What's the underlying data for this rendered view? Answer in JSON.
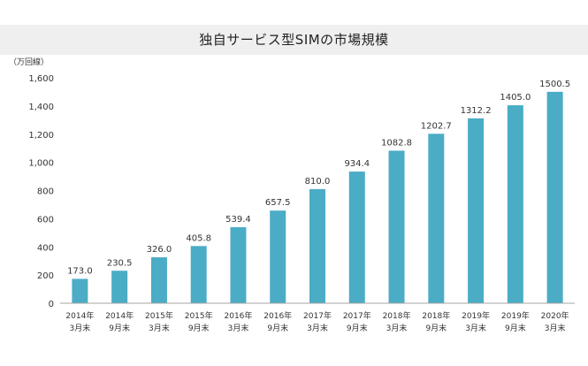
{
  "chart_data": {
    "type": "bar",
    "title": "独自サービス型SIMの市場規模",
    "ylabel": "（万回線）",
    "xlabel": "",
    "categories": [
      [
        "2014年",
        "3月末"
      ],
      [
        "2014年",
        "9月末"
      ],
      [
        "2015年",
        "3月末"
      ],
      [
        "2015年",
        "9月末"
      ],
      [
        "2016年",
        "3月末"
      ],
      [
        "2016年",
        "9月末"
      ],
      [
        "2017年",
        "3月末"
      ],
      [
        "2017年",
        "9月末"
      ],
      [
        "2018年",
        "3月末"
      ],
      [
        "2018年",
        "9月末"
      ],
      [
        "2019年",
        "3月末"
      ],
      [
        "2019年",
        "9月末"
      ],
      [
        "2020年",
        "3月末"
      ]
    ],
    "values": [
      173.0,
      230.5,
      326.0,
      405.8,
      539.4,
      657.5,
      810.0,
      934.4,
      1082.8,
      1202.7,
      1312.2,
      1405.0,
      1500.5
    ],
    "value_labels": [
      "173.0",
      "230.5",
      "326.0",
      "405.8",
      "539.4",
      "657.5",
      "810.0",
      "934.4",
      "1082.8",
      "1202.7",
      "1312.2",
      "1405.0",
      "1500.5"
    ],
    "ylim": [
      0,
      1600
    ],
    "yticks": [
      0,
      200,
      400,
      600,
      800,
      1000,
      1200,
      1400,
      1600
    ],
    "ytick_labels": [
      "0",
      "200",
      "400",
      "600",
      "800",
      "1,000",
      "1,200",
      "1,400",
      "1,600"
    ],
    "grid": false,
    "legend": "none",
    "bar_color": "#4bacc6",
    "axis_color": "#a6a6a6"
  }
}
